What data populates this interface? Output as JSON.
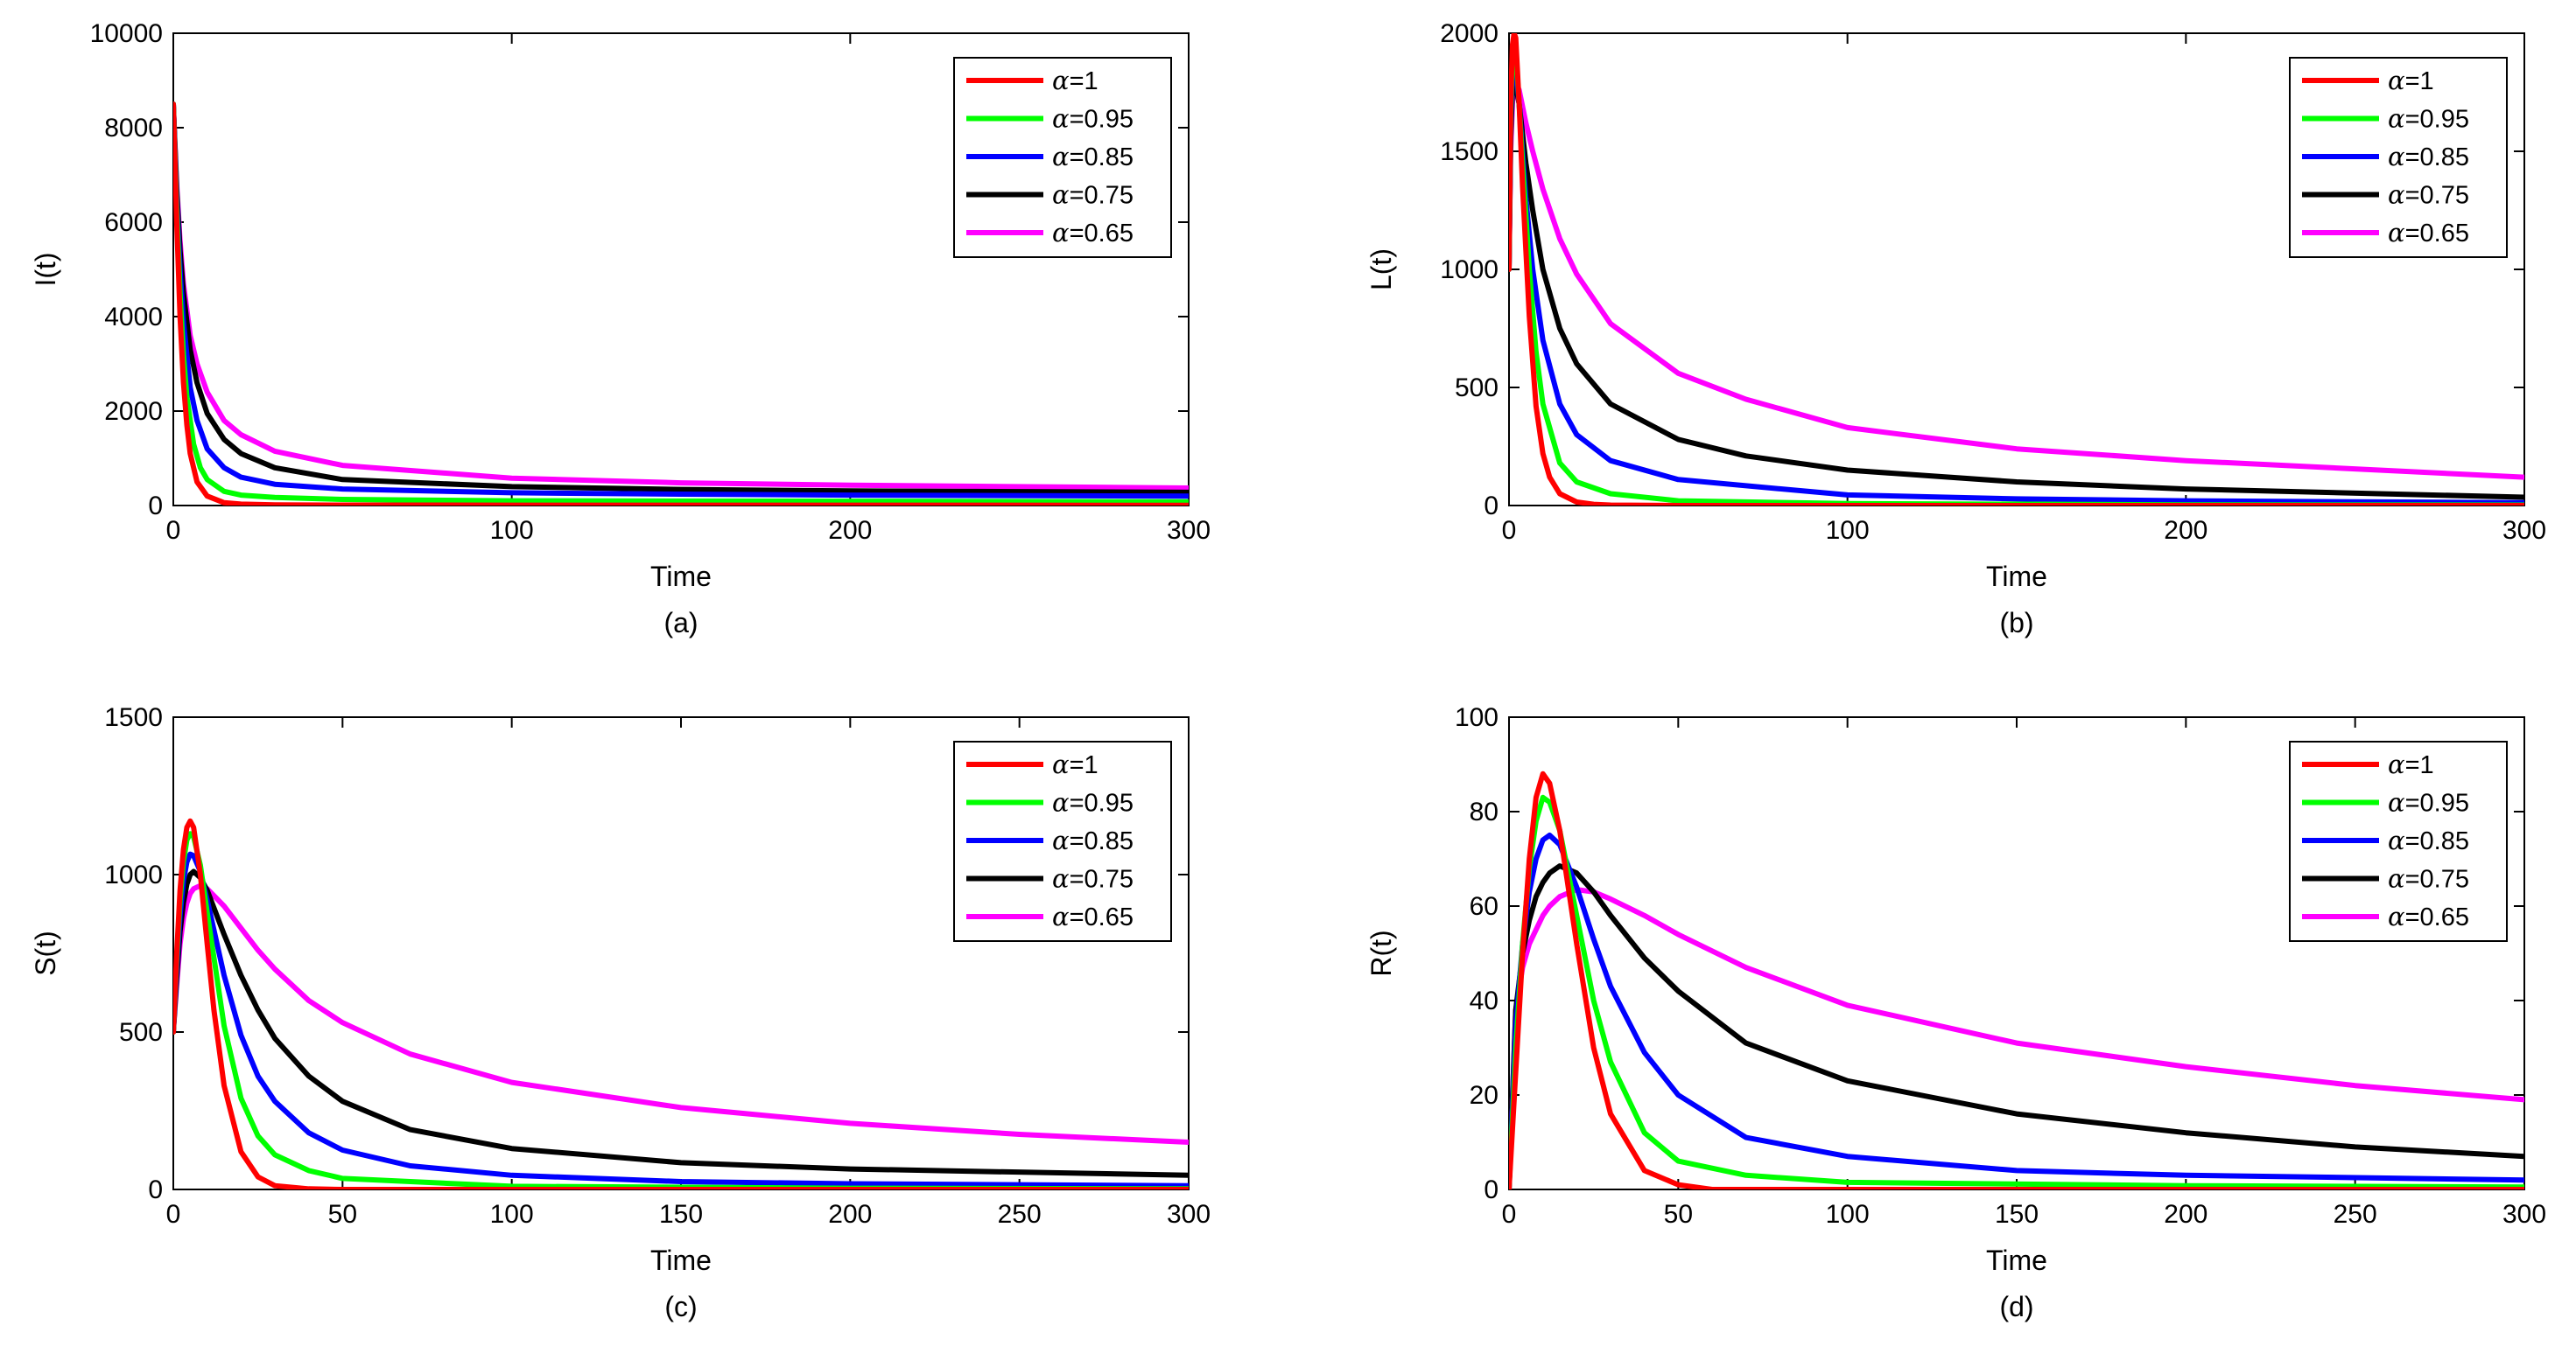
{
  "chart_data": [
    {
      "id": "a",
      "type": "line",
      "caption": "(a)",
      "title": "",
      "xlabel": "Time",
      "ylabel": "I(t)",
      "xlim": [
        0,
        300
      ],
      "ylim": [
        0,
        10000
      ],
      "xticks": [
        0,
        100,
        200,
        300
      ],
      "yticks": [
        0,
        2000,
        4000,
        6000,
        8000,
        10000
      ],
      "legend_position": "top-right",
      "series": [
        {
          "name": "α=1",
          "alpha": "1",
          "color": "#ff0000",
          "x": [
            0,
            1,
            2,
            3,
            4,
            5,
            7,
            10,
            15,
            20,
            30,
            50,
            100,
            300
          ],
          "y": [
            8500,
            6000,
            4000,
            2600,
            1700,
            1100,
            500,
            200,
            60,
            30,
            15,
            10,
            8,
            5
          ]
        },
        {
          "name": "α=0.95",
          "alpha": "0.95",
          "color": "#00ff00",
          "x": [
            0,
            1,
            2,
            3,
            4,
            6,
            8,
            10,
            15,
            20,
            30,
            50,
            100,
            200,
            300
          ],
          "y": [
            8500,
            6300,
            4500,
            3200,
            2300,
            1300,
            800,
            550,
            300,
            220,
            170,
            130,
            100,
            90,
            80
          ]
        },
        {
          "name": "α=0.85",
          "alpha": "0.85",
          "color": "#0000ff",
          "x": [
            0,
            1,
            2,
            3,
            5,
            7,
            10,
            15,
            20,
            30,
            50,
            100,
            150,
            200,
            300
          ],
          "y": [
            8500,
            6500,
            5000,
            3900,
            2500,
            1800,
            1200,
            800,
            600,
            450,
            350,
            270,
            240,
            220,
            200
          ]
        },
        {
          "name": "α=0.75",
          "alpha": "0.75",
          "color": "#000000",
          "x": [
            0,
            1,
            2,
            3,
            5,
            7,
            10,
            15,
            20,
            30,
            50,
            100,
            150,
            200,
            300
          ],
          "y": [
            8500,
            6700,
            5400,
            4500,
            3300,
            2600,
            1950,
            1400,
            1100,
            800,
            550,
            400,
            340,
            310,
            280
          ]
        },
        {
          "name": "α=0.65",
          "alpha": "0.65",
          "color": "#ff00ff",
          "x": [
            0,
            1,
            2,
            3,
            5,
            7,
            10,
            15,
            20,
            30,
            50,
            100,
            150,
            200,
            300
          ],
          "y": [
            8500,
            6800,
            5600,
            4700,
            3600,
            3000,
            2400,
            1800,
            1500,
            1150,
            850,
            580,
            480,
            430,
            370
          ]
        }
      ]
    },
    {
      "id": "b",
      "type": "line",
      "caption": "(b)",
      "title": "",
      "xlabel": "Time",
      "ylabel": "L(t)",
      "xlim": [
        0,
        300
      ],
      "ylim": [
        0,
        2000
      ],
      "xticks": [
        0,
        100,
        200,
        300
      ],
      "yticks": [
        0,
        500,
        1000,
        1500,
        2000
      ],
      "legend_position": "top-right",
      "series": [
        {
          "name": "α=1",
          "alpha": "1",
          "color": "#ff0000",
          "x": [
            0,
            0.5,
            1,
            1.5,
            2,
            3,
            4,
            6,
            8,
            10,
            12,
            15,
            20,
            25,
            30,
            50,
            300
          ],
          "y": [
            1000,
            1700,
            1950,
            2000,
            1980,
            1700,
            1350,
            800,
            420,
            220,
            120,
            50,
            15,
            5,
            2,
            0,
            0
          ]
        },
        {
          "name": "α=0.95",
          "alpha": "0.95",
          "color": "#00ff00",
          "x": [
            0,
            0.5,
            1,
            1.5,
            2,
            3,
            4,
            6,
            8,
            10,
            15,
            20,
            30,
            50,
            100,
            200,
            300
          ],
          "y": [
            1000,
            1650,
            1900,
            1950,
            1920,
            1700,
            1450,
            1000,
            650,
            430,
            180,
            100,
            50,
            20,
            8,
            3,
            2
          ]
        },
        {
          "name": "α=0.85",
          "alpha": "0.85",
          "color": "#0000ff",
          "x": [
            0,
            0.5,
            1,
            1.5,
            2,
            3,
            5,
            7,
            10,
            15,
            20,
            30,
            50,
            100,
            150,
            200,
            300
          ],
          "y": [
            1000,
            1600,
            1830,
            1870,
            1850,
            1700,
            1300,
            1000,
            700,
            430,
            300,
            190,
            110,
            45,
            28,
            20,
            12
          ]
        },
        {
          "name": "α=0.75",
          "alpha": "0.75",
          "color": "#000000",
          "x": [
            0,
            0.5,
            1,
            1.5,
            2,
            3,
            5,
            7,
            10,
            15,
            20,
            30,
            50,
            70,
            100,
            150,
            200,
            300
          ],
          "y": [
            1000,
            1550,
            1760,
            1800,
            1780,
            1700,
            1450,
            1250,
            1000,
            750,
            600,
            430,
            280,
            210,
            150,
            100,
            70,
            35
          ]
        },
        {
          "name": "α=0.65",
          "alpha": "0.65",
          "color": "#ff00ff",
          "x": [
            0,
            0.5,
            1,
            1.5,
            2,
            3,
            5,
            7,
            10,
            15,
            20,
            30,
            50,
            70,
            100,
            150,
            200,
            300
          ],
          "y": [
            1000,
            1500,
            1700,
            1780,
            1790,
            1760,
            1620,
            1500,
            1340,
            1130,
            980,
            770,
            560,
            450,
            330,
            240,
            190,
            120
          ]
        }
      ]
    },
    {
      "id": "c",
      "type": "line",
      "caption": "(c)",
      "title": "",
      "xlabel": "Time",
      "ylabel": "S(t)",
      "xlim": [
        0,
        300
      ],
      "ylim": [
        0,
        1500
      ],
      "xticks": [
        0,
        50,
        100,
        150,
        200,
        250,
        300
      ],
      "yticks": [
        0,
        500,
        1000,
        1500
      ],
      "legend_position": "top-right",
      "series": [
        {
          "name": "α=1",
          "alpha": "1",
          "color": "#ff0000",
          "x": [
            0,
            1,
            2,
            3,
            4,
            5,
            6,
            8,
            10,
            12,
            15,
            20,
            25,
            30,
            40,
            50,
            300
          ],
          "y": [
            500,
            750,
            950,
            1080,
            1150,
            1170,
            1150,
            1000,
            780,
            570,
            330,
            120,
            40,
            12,
            2,
            0,
            0
          ]
        },
        {
          "name": "α=0.95",
          "alpha": "0.95",
          "color": "#00ff00",
          "x": [
            0,
            1,
            2,
            3,
            4,
            5,
            6,
            8,
            10,
            15,
            20,
            25,
            30,
            40,
            50,
            100,
            200,
            300
          ],
          "y": [
            500,
            730,
            920,
            1040,
            1110,
            1130,
            1120,
            1030,
            880,
            520,
            290,
            170,
            110,
            60,
            35,
            10,
            4,
            2
          ]
        },
        {
          "name": "α=0.85",
          "alpha": "0.85",
          "color": "#0000ff",
          "x": [
            0,
            1,
            2,
            3,
            4,
            5,
            6,
            8,
            10,
            15,
            20,
            25,
            30,
            40,
            50,
            70,
            100,
            150,
            200,
            300
          ],
          "y": [
            500,
            700,
            870,
            980,
            1040,
            1065,
            1060,
            1010,
            920,
            680,
            490,
            360,
            280,
            180,
            125,
            75,
            45,
            25,
            18,
            12
          ]
        },
        {
          "name": "α=0.75",
          "alpha": "0.75",
          "color": "#000000",
          "x": [
            0,
            1,
            2,
            3,
            4,
            5,
            6,
            8,
            10,
            15,
            20,
            25,
            30,
            40,
            50,
            70,
            100,
            150,
            200,
            300
          ],
          "y": [
            500,
            670,
            820,
            910,
            970,
            1000,
            1010,
            990,
            950,
            810,
            680,
            570,
            480,
            360,
            280,
            190,
            130,
            85,
            65,
            45
          ]
        },
        {
          "name": "α=0.65",
          "alpha": "0.65",
          "color": "#ff00ff",
          "x": [
            0,
            1,
            2,
            3,
            4,
            5,
            6,
            8,
            10,
            15,
            20,
            25,
            30,
            40,
            50,
            70,
            100,
            150,
            200,
            250,
            300
          ],
          "y": [
            500,
            650,
            780,
            860,
            910,
            940,
            955,
            965,
            955,
            900,
            830,
            760,
            700,
            600,
            530,
            430,
            340,
            260,
            210,
            175,
            150
          ]
        }
      ]
    },
    {
      "id": "d",
      "type": "line",
      "caption": "(d)",
      "title": "",
      "xlabel": "Time",
      "ylabel": "R(t)",
      "xlim": [
        0,
        300
      ],
      "ylim": [
        0,
        100
      ],
      "xticks": [
        0,
        50,
        100,
        150,
        200,
        250,
        300
      ],
      "yticks": [
        0,
        20,
        40,
        60,
        80,
        100
      ],
      "legend_position": "top-right",
      "series": [
        {
          "name": "α=1",
          "alpha": "1",
          "color": "#ff0000",
          "x": [
            0,
            2,
            4,
            6,
            8,
            10,
            12,
            15,
            20,
            25,
            30,
            40,
            50,
            60,
            300
          ],
          "y": [
            0,
            25,
            50,
            70,
            83,
            88,
            86,
            76,
            52,
            30,
            16,
            4,
            1,
            0,
            0
          ]
        },
        {
          "name": "α=0.95",
          "alpha": "0.95",
          "color": "#00ff00",
          "x": [
            0,
            2,
            4,
            6,
            8,
            10,
            12,
            15,
            20,
            25,
            30,
            40,
            50,
            70,
            100,
            200,
            300
          ],
          "y": [
            0,
            30,
            52,
            68,
            78,
            83,
            82,
            76,
            58,
            40,
            27,
            12,
            6,
            3,
            1.5,
            0.8,
            0.5
          ]
        },
        {
          "name": "α=0.85",
          "alpha": "0.85",
          "color": "#0000ff",
          "x": [
            0,
            2,
            4,
            6,
            8,
            10,
            12,
            15,
            20,
            25,
            30,
            40,
            50,
            70,
            100,
            150,
            200,
            300
          ],
          "y": [
            0,
            35,
            52,
            63,
            70,
            74,
            75,
            73,
            64,
            53,
            43,
            29,
            20,
            11,
            7,
            4,
            3,
            2
          ]
        },
        {
          "name": "α=0.75",
          "alpha": "0.75",
          "color": "#000000",
          "x": [
            0,
            2,
            4,
            6,
            8,
            10,
            12,
            15,
            20,
            25,
            30,
            40,
            50,
            70,
            100,
            150,
            200,
            250,
            300
          ],
          "y": [
            0,
            38,
            50,
            57,
            62,
            65,
            67,
            68.5,
            67,
            63,
            58,
            49,
            42,
            31,
            23,
            16,
            12,
            9,
            7
          ]
        },
        {
          "name": "α=0.65",
          "alpha": "0.65",
          "color": "#ff00ff",
          "x": [
            0,
            2,
            4,
            6,
            8,
            10,
            12,
            15,
            20,
            25,
            30,
            40,
            50,
            70,
            100,
            150,
            200,
            250,
            300
          ],
          "y": [
            0,
            38,
            47,
            52,
            55,
            58,
            60,
            62,
            63.5,
            63,
            61.5,
            58,
            54,
            47,
            39,
            31,
            26,
            22,
            19
          ]
        }
      ]
    }
  ]
}
